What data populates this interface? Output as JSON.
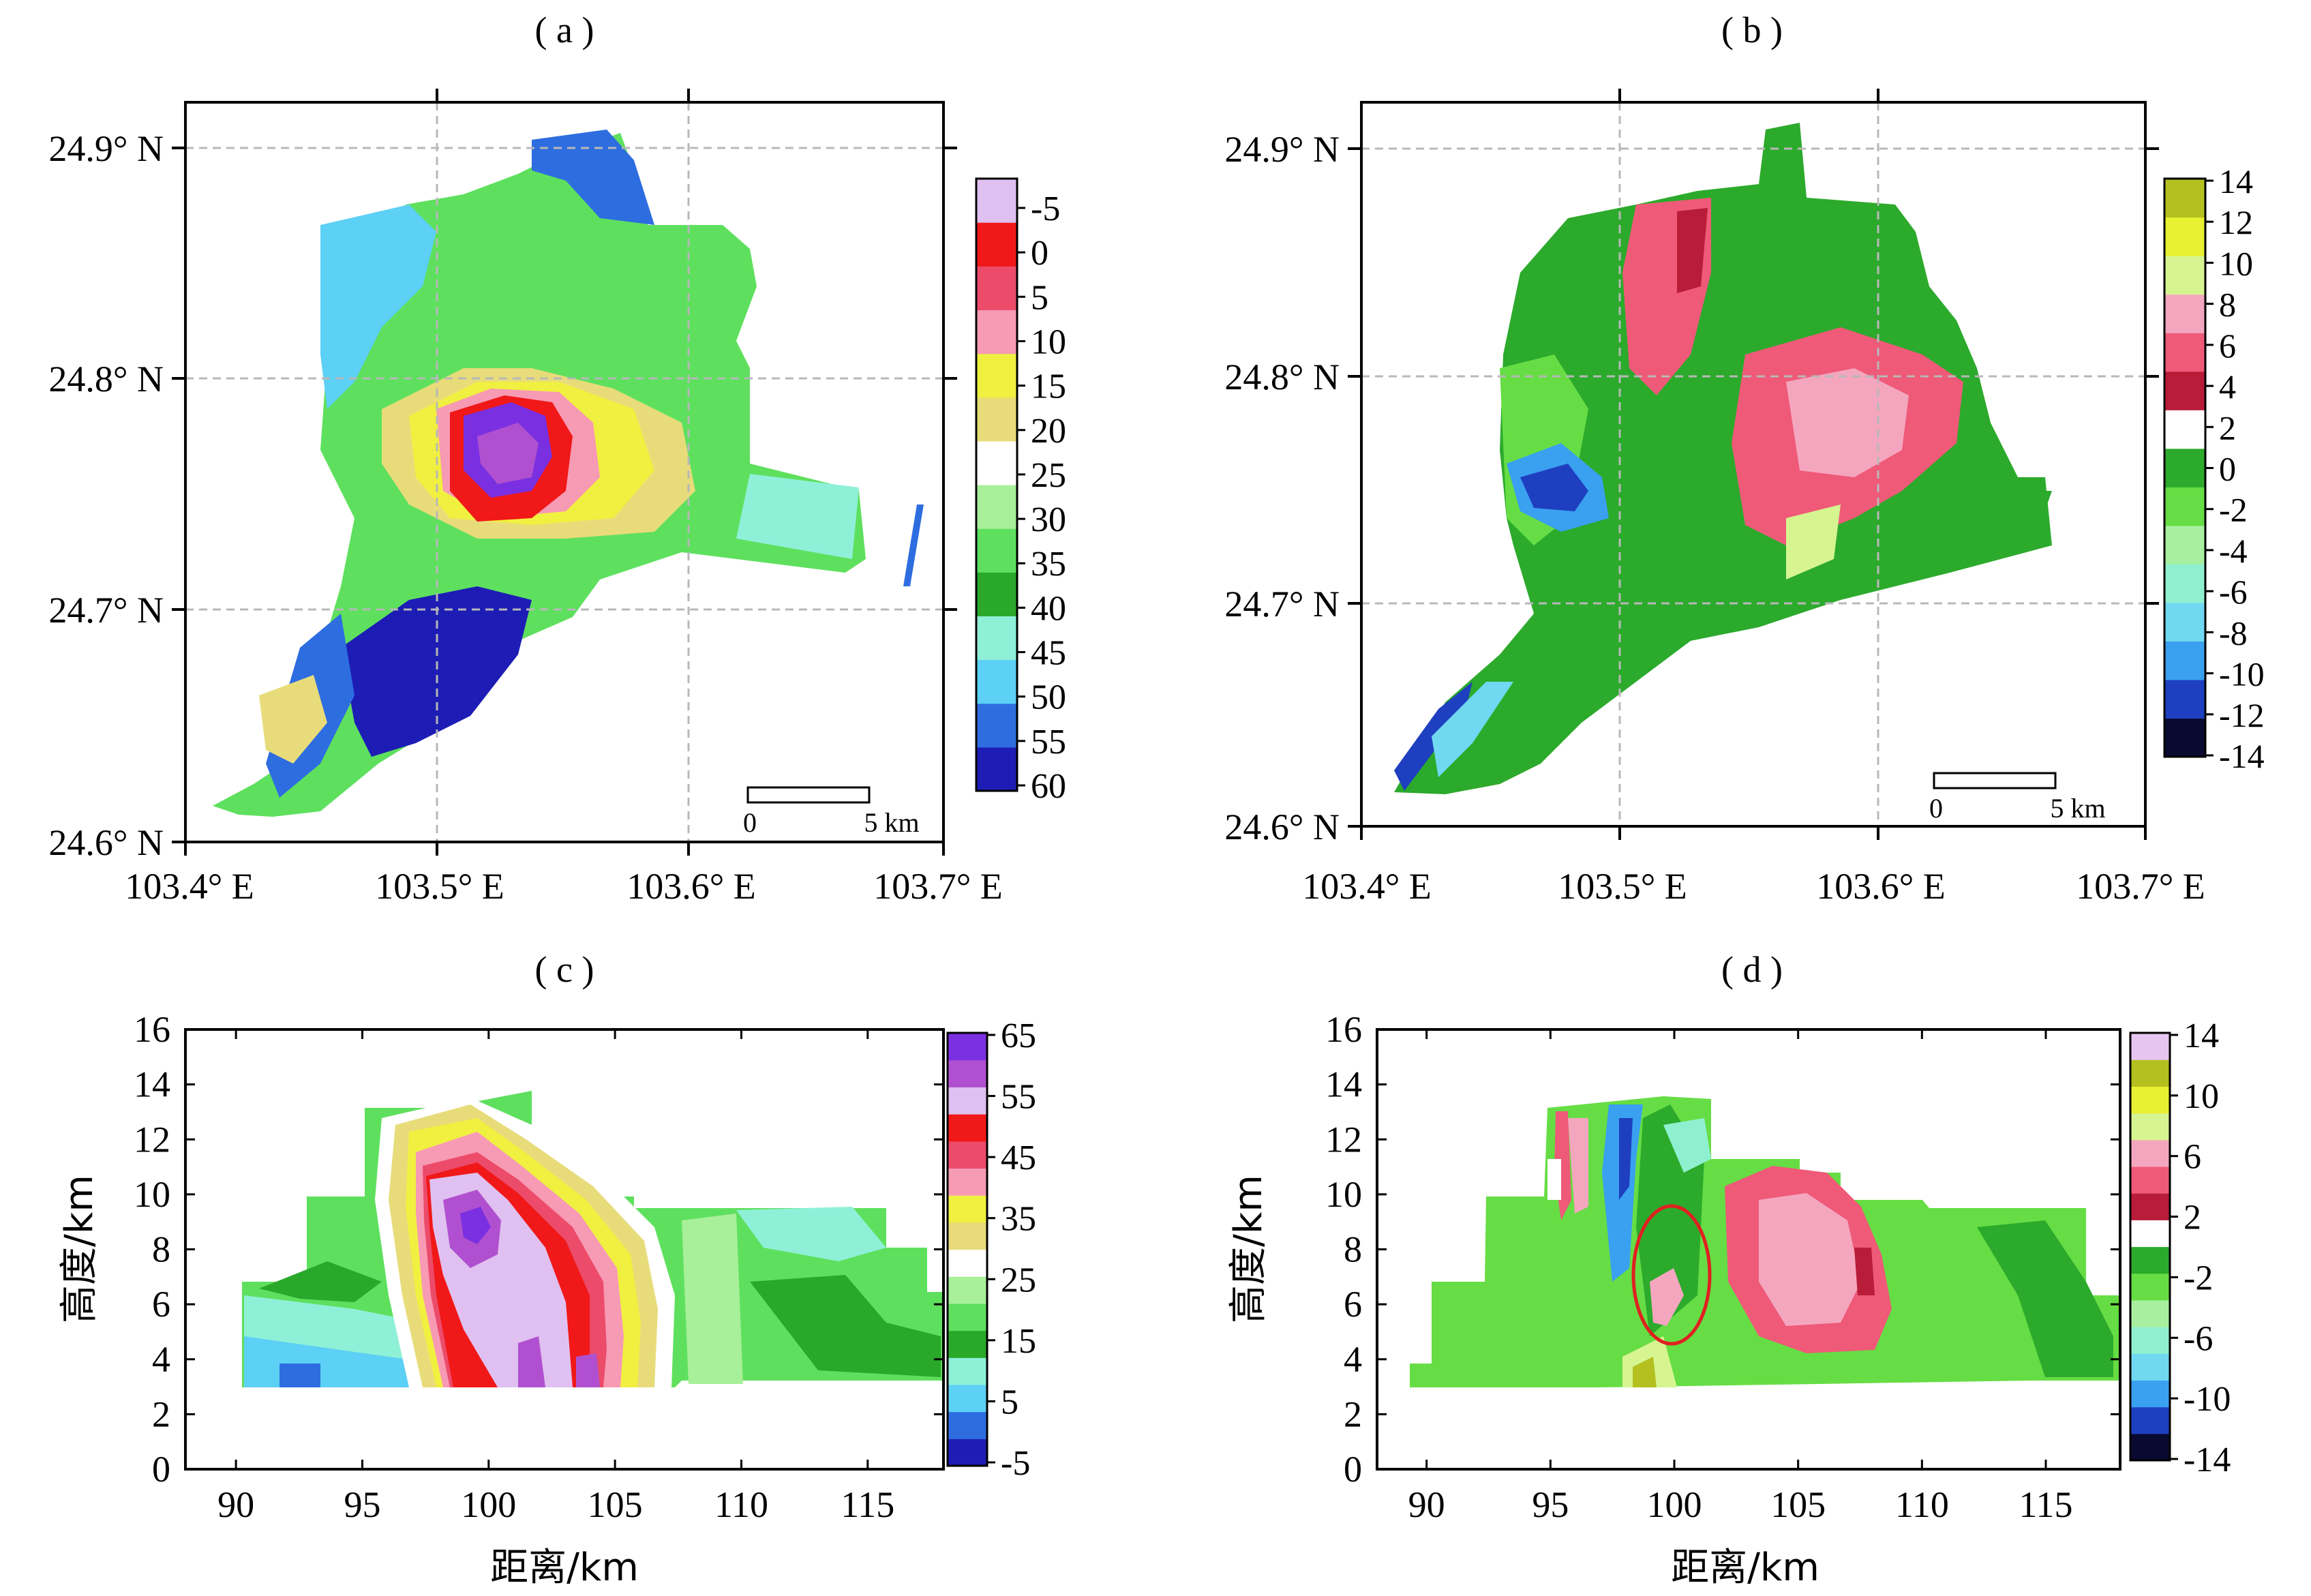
{
  "colors": {
    "ref_scale": [
      "#1d1db5",
      "#2e6de0",
      "#5cd0f5",
      "#8ff0d8",
      "#2aa82a",
      "#5ee05e",
      "#a8f09a",
      "#ffffff",
      "#e8dc7a",
      "#f0f040",
      "#f79ab4",
      "#ec4b6a",
      "#f01818",
      "#e0c0f0",
      "#b050d0",
      "#7a30e0"
    ],
    "vel_scale": [
      "#0a0a30",
      "#1e3fc0",
      "#3aa0f0",
      "#70d8f0",
      "#8ff0d0",
      "#a8f0a0",
      "#66dd44",
      "#2caa2c",
      "#ffffff",
      "#b81c38",
      "#ee5a78",
      "#f5a6bf",
      "#d6f590",
      "#e8f032",
      "#b4c020",
      "#e6c6f0"
    ],
    "ellipse": "#e02020"
  },
  "chart_data": [
    {
      "id": "a",
      "panel_label": "( a )",
      "type": "heatmap",
      "variable": "reflectivity",
      "x_ticks": [
        "103.4° E",
        "103.5° E",
        "103.6° E",
        "103.7° E"
      ],
      "y_ticks": [
        "24.6° N",
        "24.7° N",
        "24.8° N",
        "24.9° N"
      ],
      "xlim": [
        103.4,
        103.7
      ],
      "ylim": [
        24.6,
        24.92
      ],
      "colorbar": {
        "ticks": [
          "-5",
          "0",
          "5",
          "10",
          "15",
          "20",
          "25",
          "30",
          "35",
          "40",
          "45",
          "50",
          "55",
          "60"
        ],
        "range": [
          -5,
          65
        ]
      },
      "scale_bar": {
        "start": "0",
        "end": "5 km"
      },
      "grid": true
    },
    {
      "id": "b",
      "panel_label": "( b )",
      "type": "heatmap",
      "variable": "radial velocity",
      "x_ticks": [
        "103.4° E",
        "103.5° E",
        "103.6° E",
        "103.7° E"
      ],
      "y_ticks": [
        "24.6° N",
        "24.7° N",
        "24.8° N",
        "24.9° N"
      ],
      "xlim": [
        103.4,
        103.7
      ],
      "ylim": [
        24.6,
        24.92
      ],
      "colorbar": {
        "ticks": [
          "14",
          "12",
          "10",
          "8",
          "6",
          "4",
          "2",
          "0",
          "-2",
          "-4",
          "-6",
          "-8",
          "-10",
          "-12",
          "-14"
        ],
        "range": [
          -14,
          14
        ]
      },
      "scale_bar": {
        "start": "0",
        "end": "5 km"
      },
      "grid": true
    },
    {
      "id": "c",
      "panel_label": "( c )",
      "type": "heatmap",
      "variable": "reflectivity cross-section",
      "xlabel": "距离/km",
      "ylabel": "高度/km",
      "x_ticks": [
        "90",
        "95",
        "100",
        "105",
        "110",
        "115"
      ],
      "y_ticks": [
        "0",
        "2",
        "4",
        "6",
        "8",
        "10",
        "12",
        "14",
        "16"
      ],
      "xlim": [
        88,
        118
      ],
      "ylim": [
        0,
        16
      ],
      "colorbar": {
        "ticks": [
          "65",
          "55",
          "45",
          "35",
          "25",
          "15",
          "5",
          "-5"
        ],
        "range": [
          -5,
          65
        ]
      }
    },
    {
      "id": "d",
      "panel_label": "( d )",
      "type": "heatmap",
      "variable": "velocity cross-section",
      "xlabel": "距离/km",
      "ylabel": "高度/km",
      "x_ticks": [
        "90",
        "95",
        "100",
        "105",
        "110",
        "115"
      ],
      "y_ticks": [
        "0",
        "2",
        "4",
        "6",
        "8",
        "10",
        "12",
        "14",
        "16"
      ],
      "xlim": [
        88,
        118
      ],
      "ylim": [
        0,
        16
      ],
      "colorbar": {
        "ticks": [
          "14",
          "10",
          "6",
          "2",
          "-2",
          "-6",
          "-10",
          "-14"
        ],
        "range": [
          -14,
          14
        ]
      },
      "annotation": {
        "type": "ellipse",
        "center_x_km": 100.3,
        "center_z_km": 6.9
      }
    }
  ]
}
